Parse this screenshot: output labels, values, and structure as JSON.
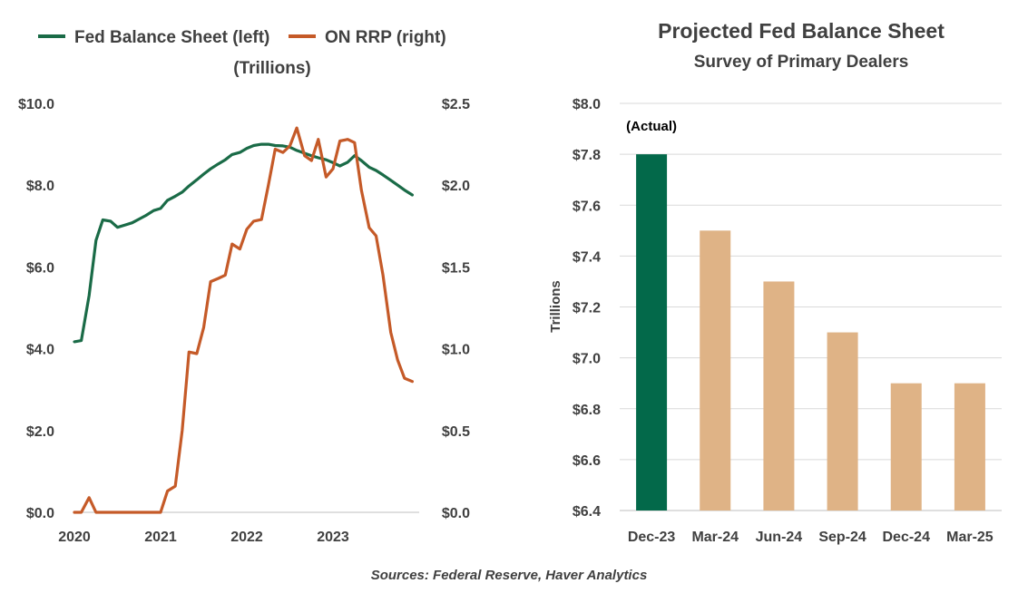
{
  "chart_data": [
    {
      "type": "line",
      "title": "",
      "subtitle": "(Trillions)",
      "x_tick_labels": [
        "2020",
        "2021",
        "2022",
        "2023"
      ],
      "y_left_tick_labels": [
        "$0.0",
        "$2.0",
        "$4.0",
        "$6.0",
        "$8.0",
        "$10.0"
      ],
      "y_right_tick_labels": [
        "$0.0",
        "$0.5",
        "$1.0",
        "$1.5",
        "$2.0",
        "$2.5"
      ],
      "ylim_left": [
        0,
        10
      ],
      "ylim_right": [
        0,
        2.5
      ],
      "xlim": [
        2020.0,
        2024.0
      ],
      "legend_position": "top",
      "series": [
        {
          "name": "Fed Balance Sheet (left)",
          "axis": "left",
          "color": "#1a6b47",
          "x": [
            2020.0,
            2020.08,
            2020.17,
            2020.25,
            2020.33,
            2020.42,
            2020.5,
            2020.58,
            2020.67,
            2020.75,
            2020.83,
            2020.92,
            2021.0,
            2021.08,
            2021.17,
            2021.25,
            2021.33,
            2021.42,
            2021.5,
            2021.58,
            2021.67,
            2021.75,
            2021.83,
            2021.92,
            2022.0,
            2022.08,
            2022.17,
            2022.25,
            2022.33,
            2022.42,
            2022.5,
            2022.58,
            2022.67,
            2022.75,
            2022.83,
            2022.92,
            2023.0,
            2023.08,
            2023.17,
            2023.25,
            2023.33,
            2023.42,
            2023.5,
            2023.58,
            2023.67,
            2023.75,
            2023.83,
            2023.92
          ],
          "values": [
            4.17,
            4.2,
            5.3,
            6.65,
            7.15,
            7.12,
            6.97,
            7.02,
            7.08,
            7.17,
            7.26,
            7.38,
            7.43,
            7.63,
            7.73,
            7.83,
            7.98,
            8.13,
            8.27,
            8.4,
            8.52,
            8.62,
            8.75,
            8.8,
            8.9,
            8.97,
            9.0,
            9.0,
            8.97,
            8.96,
            8.93,
            8.85,
            8.78,
            8.72,
            8.67,
            8.62,
            8.55,
            8.47,
            8.56,
            8.72,
            8.6,
            8.44,
            8.36,
            8.25,
            8.12,
            8.0,
            7.88,
            7.76
          ]
        },
        {
          "name": "ON RRP (right)",
          "axis": "right",
          "color": "#c55a28",
          "x": [
            2020.0,
            2020.08,
            2020.17,
            2020.25,
            2020.33,
            2020.42,
            2020.5,
            2020.58,
            2020.67,
            2020.75,
            2020.83,
            2020.92,
            2021.0,
            2021.08,
            2021.17,
            2021.25,
            2021.33,
            2021.42,
            2021.5,
            2021.58,
            2021.67,
            2021.75,
            2021.83,
            2021.92,
            2022.0,
            2022.08,
            2022.17,
            2022.25,
            2022.33,
            2022.42,
            2022.5,
            2022.58,
            2022.67,
            2022.75,
            2022.83,
            2022.92,
            2023.0,
            2023.08,
            2023.17,
            2023.25,
            2023.33,
            2023.42,
            2023.5,
            2023.58,
            2023.67,
            2023.75,
            2023.83,
            2023.92
          ],
          "values": [
            0.0,
            0.0,
            0.09,
            0.0,
            0.0,
            0.0,
            0.0,
            0.0,
            0.0,
            0.0,
            0.0,
            0.0,
            0.0,
            0.13,
            0.16,
            0.5,
            0.98,
            0.97,
            1.13,
            1.41,
            1.43,
            1.45,
            1.64,
            1.61,
            1.73,
            1.78,
            1.79,
            2.0,
            2.22,
            2.2,
            2.24,
            2.35,
            2.18,
            2.15,
            2.28,
            2.05,
            2.1,
            2.27,
            2.28,
            2.26,
            1.97,
            1.74,
            1.69,
            1.45,
            1.1,
            0.93,
            0.82,
            0.8
          ]
        }
      ]
    },
    {
      "type": "bar",
      "title": "Projected Fed Balance Sheet",
      "subtitle": "Survey of Primary Dealers",
      "xlabel": "",
      "ylabel": "Trillions",
      "ylim": [
        6.4,
        8.0
      ],
      "y_tick_labels": [
        "$6.4",
        "$6.6",
        "$6.8",
        "$7.0",
        "$7.2",
        "$7.4",
        "$7.6",
        "$7.8",
        "$8.0"
      ],
      "categories": [
        "Dec-23",
        "Mar-24",
        "Jun-24",
        "Sep-24",
        "Dec-24",
        "Mar-25"
      ],
      "values": [
        7.8,
        7.5,
        7.3,
        7.1,
        6.9,
        6.9
      ],
      "bar_colors": [
        "#03694a",
        "#dfb386",
        "#dfb386",
        "#dfb386",
        "#dfb386",
        "#dfb386"
      ],
      "annotation": "(Actual)",
      "grid": true
    }
  ],
  "footer": {
    "source": "Sources: Federal Reserve, Haver Analytics"
  }
}
